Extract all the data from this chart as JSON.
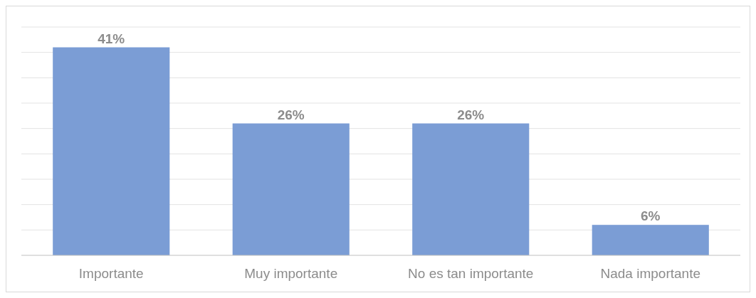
{
  "chart_data": {
    "type": "bar",
    "categories": [
      "Importante",
      "Muy importante",
      "No es tan importante",
      "Nada importante"
    ],
    "values": [
      41,
      26,
      26,
      6
    ],
    "value_labels": [
      "41%",
      "26%",
      "26%",
      "6%"
    ],
    "color": "#7b9dd5",
    "ylim": [
      0,
      45
    ],
    "yticks": [
      {
        "value": 0,
        "label": null
      },
      {
        "value": 5,
        "label": null
      },
      {
        "value": 10,
        "label": null
      },
      {
        "value": 15,
        "label": null
      },
      {
        "value": 20,
        "label": null
      },
      {
        "value": 25,
        "label": null
      },
      {
        "value": 30,
        "label": null
      },
      {
        "value": 35,
        "label": null
      },
      {
        "value": 40,
        "label": null
      },
      {
        "value": 45,
        "label": null
      }
    ],
    "grid": "y",
    "tick_labels": "x"
  }
}
